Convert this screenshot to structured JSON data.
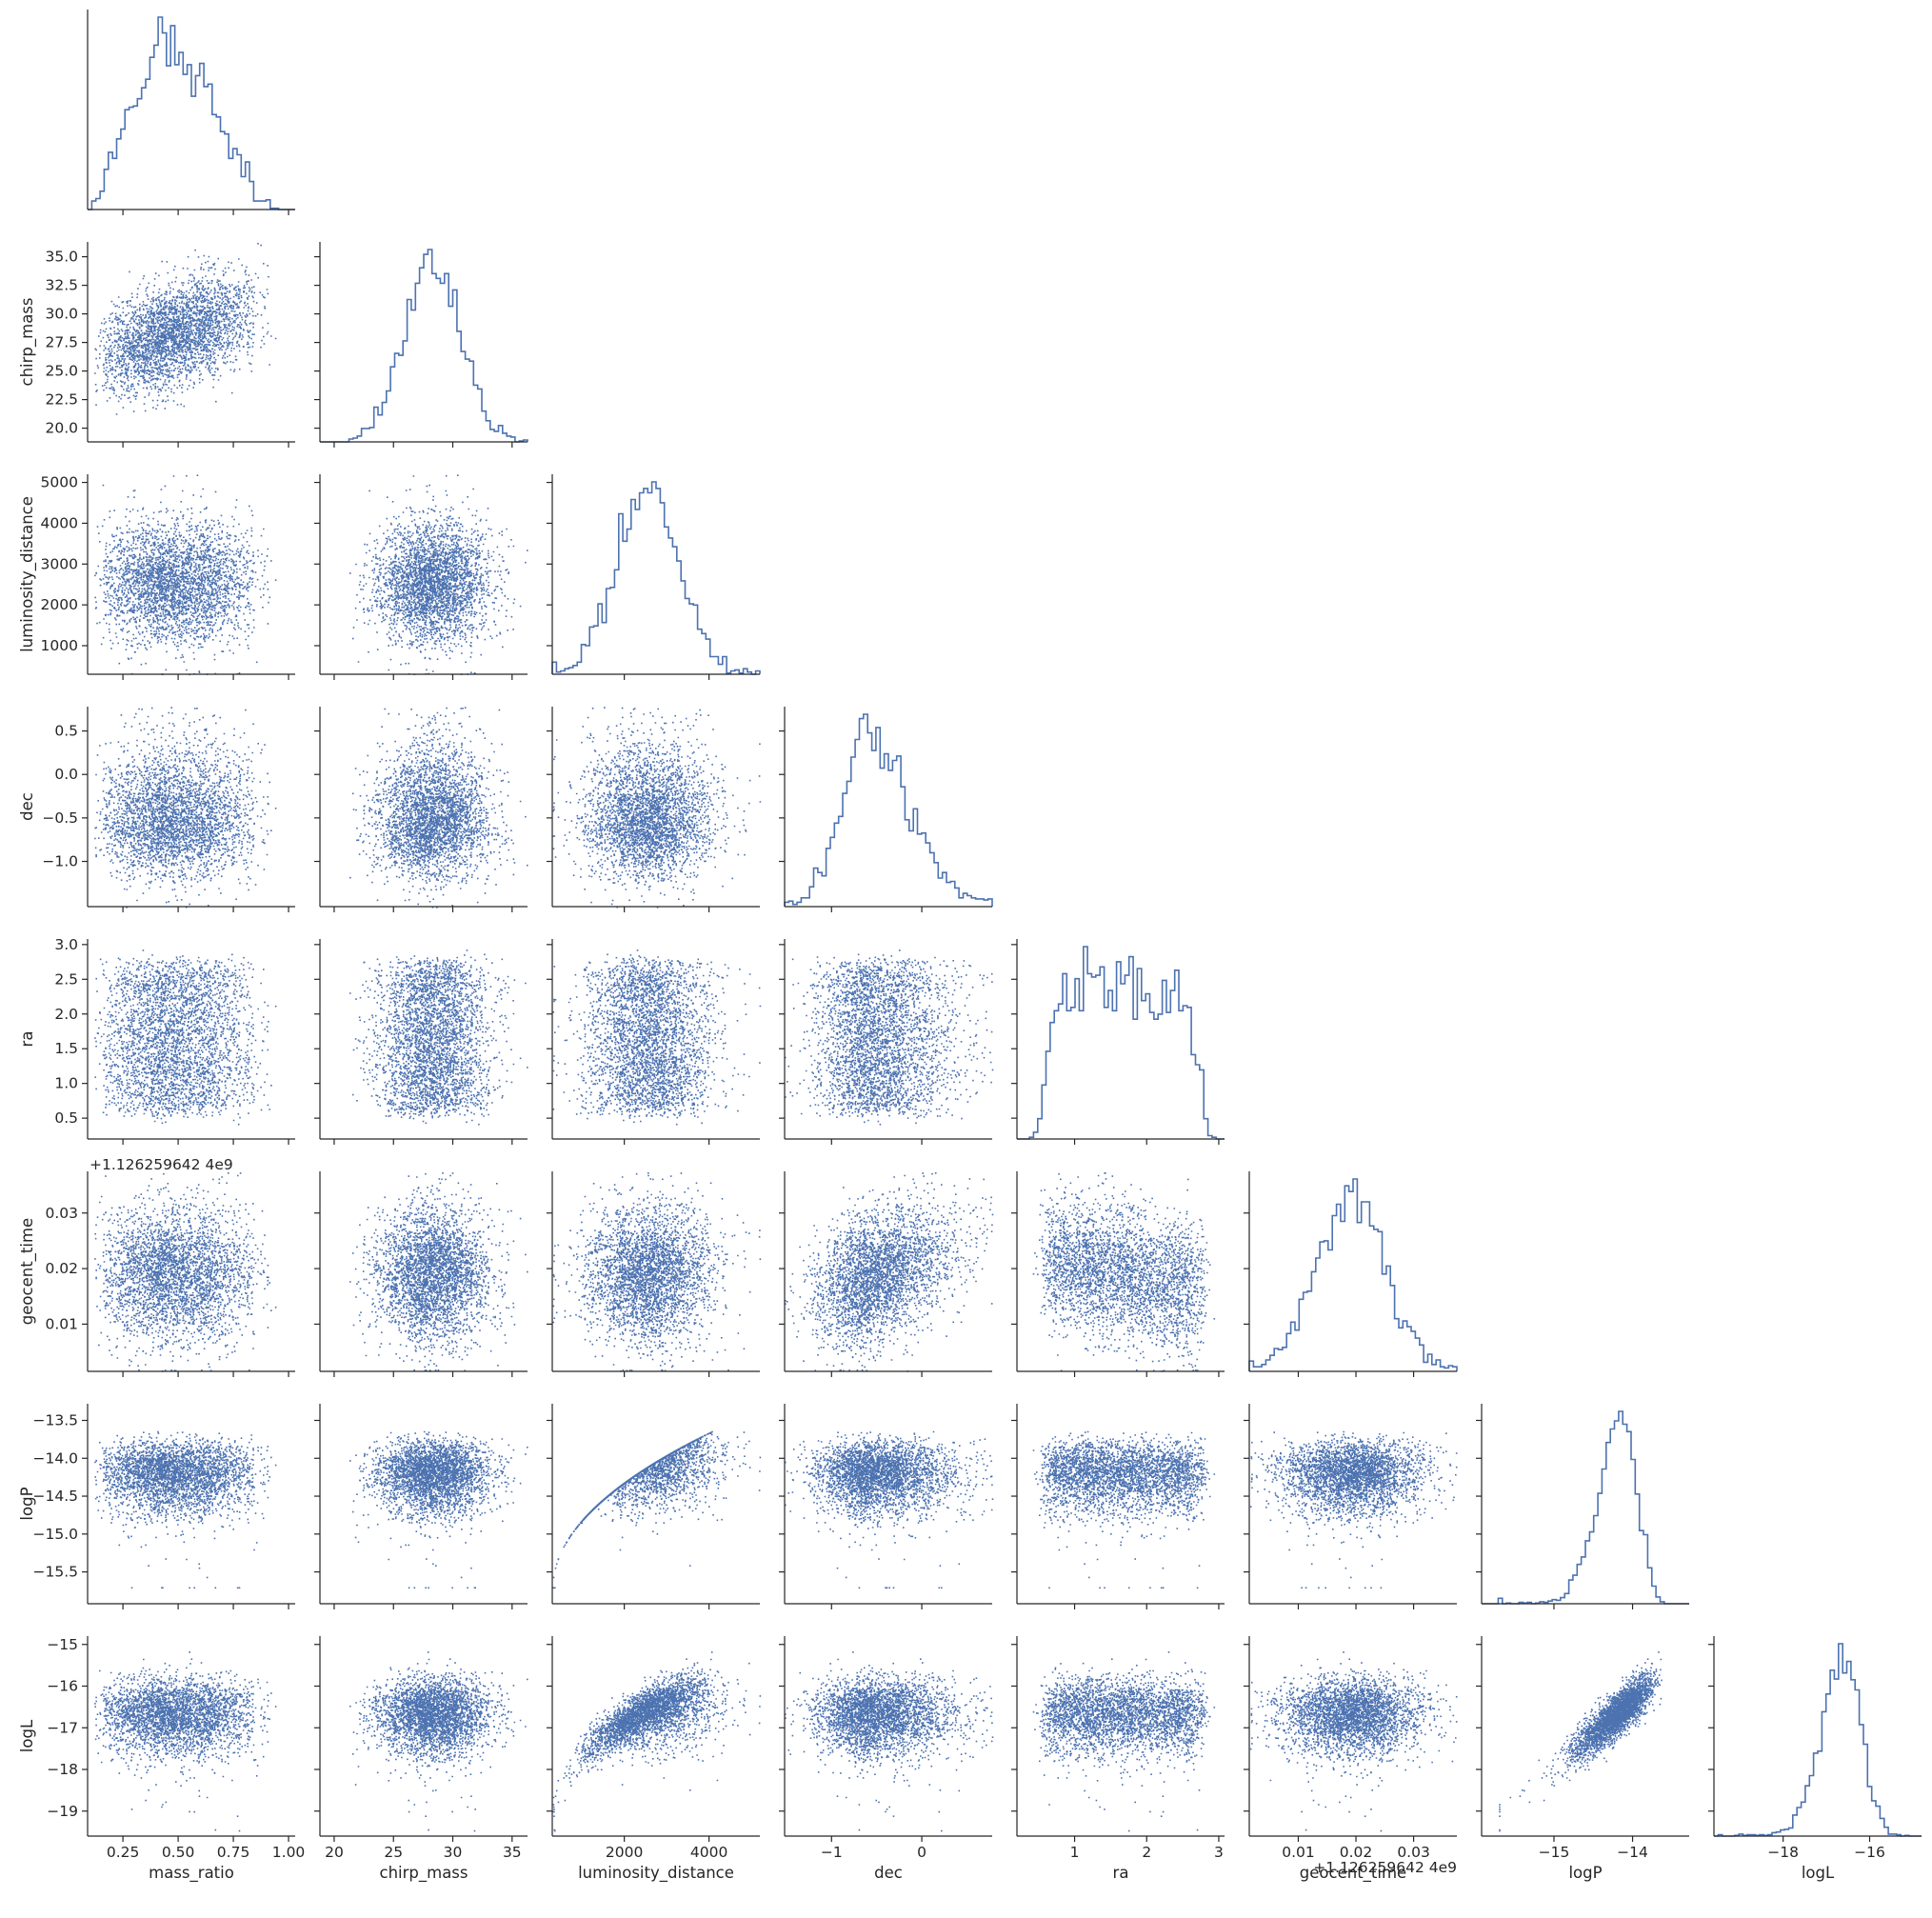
{
  "colors": {
    "marker": "#4c72b0",
    "axis": "#262626",
    "background": "#ffffff"
  },
  "chart_data": {
    "type": "pairplot",
    "layout": "lower-triangle",
    "diagonal": "histogram (step)",
    "off_diagonal": "scatter",
    "variables": [
      {
        "name": "mass_ratio",
        "label": "mass_ratio",
        "range": [
          0.09,
          1.03
        ],
        "ticks": [
          0.25,
          0.5,
          0.75,
          1.0
        ],
        "tick_labels": [
          "0.25",
          "0.50",
          "0.75",
          "1.00"
        ],
        "dist": {
          "type": "beta",
          "a": 2.7,
          "b": 3.6,
          "min": 0.1,
          "max": 1.0
        }
      },
      {
        "name": "chirp_mass",
        "label": "chirp_mass",
        "range": [
          18.8,
          36.3
        ],
        "ticks": [
          20,
          25,
          30,
          35
        ],
        "tick_labels": [
          "20",
          "25",
          "30",
          "35"
        ],
        "ytick_values": [
          20.0,
          22.5,
          25.0,
          27.5,
          30.0,
          32.5,
          35.0
        ],
        "ytick_labels": [
          "20.0",
          "22.5",
          "25.0",
          "27.5",
          "30.0",
          "32.5",
          "35.0"
        ],
        "dist": {
          "type": "normal",
          "mean": 28.1,
          "sd": 2.1
        }
      },
      {
        "name": "luminosity_distance",
        "label": "luminosity_distance",
        "range": [
          300,
          5200
        ],
        "ticks": [
          2000,
          4000
        ],
        "tick_labels": [
          "2000",
          "4000"
        ],
        "ytick_values": [
          1000,
          2000,
          3000,
          4000,
          5000
        ],
        "ytick_labels": [
          "1000",
          "2000",
          "3000",
          "4000",
          "5000"
        ],
        "dist": {
          "type": "normal",
          "mean": 2550,
          "sd": 760
        }
      },
      {
        "name": "dec",
        "label": "dec",
        "range": [
          -1.52,
          0.78
        ],
        "ticks": [
          -1,
          0
        ],
        "tick_labels": [
          "−1",
          "0"
        ],
        "ytick_values": [
          -1.0,
          -0.5,
          0.0,
          0.5
        ],
        "ytick_labels": [
          "−1.0",
          "−0.5",
          "0.0",
          "0.5"
        ],
        "dist": {
          "type": "skewed",
          "mode": -0.62,
          "sd_left": 0.28,
          "sd_right": 0.48
        }
      },
      {
        "name": "ra",
        "label": "ra",
        "range": [
          0.2,
          3.08
        ],
        "ticks": [
          1,
          2,
          3
        ],
        "tick_labels": [
          "1",
          "2",
          "3"
        ],
        "ytick_values": [
          0.5,
          1.0,
          1.5,
          2.0,
          2.5,
          3.0
        ],
        "ytick_labels": [
          "0.5",
          "1.0",
          "1.5",
          "2.0",
          "2.5",
          "3.0"
        ],
        "dist": {
          "type": "plateau",
          "lo": 0.62,
          "hi": 2.72,
          "edge_sd": 0.12
        }
      },
      {
        "name": "geocent_time",
        "label": "geocent_time",
        "range": [
          0.0015,
          0.0375
        ],
        "ticks": [
          0.01,
          0.02,
          0.03
        ],
        "tick_labels": [
          "0.01",
          "0.02",
          "0.03"
        ],
        "ytick_values": [
          0.01,
          0.02,
          0.03
        ],
        "ytick_labels": [
          "0.01",
          "0.02",
          "0.03"
        ],
        "offset_y_text": "+1.126259642 4e9",
        "offset_x_text": "+1.126259642 4e9",
        "dist": {
          "type": "normal",
          "mean": 0.0188,
          "sd": 0.0055
        }
      },
      {
        "name": "logP",
        "label": "logP",
        "range": [
          -15.92,
          -13.28
        ],
        "ticks": [
          -15,
          -14
        ],
        "tick_labels": [
          "−15",
          "−14"
        ],
        "ytick_values": [
          -15.5,
          -15.0,
          -14.5,
          -14.0,
          -13.5
        ],
        "ytick_labels": [
          "−15.5",
          "−15.0",
          "−14.5",
          "−14.0",
          "−13.5"
        ],
        "dist": {
          "type": "leftskew",
          "mode": -13.8,
          "sd_left": 0.38,
          "sd_right": 0.12
        }
      },
      {
        "name": "logL",
        "label": "logL",
        "range": [
          -19.6,
          -14.8
        ],
        "ticks": [
          -18,
          -16
        ],
        "tick_labels": [
          "−18",
          "−16"
        ],
        "ytick_values": [
          -19,
          -18,
          -17,
          -16,
          -15
        ],
        "ytick_labels": [
          "−19",
          "−18",
          "−17",
          "−16",
          "−15"
        ],
        "dist": {
          "type": "leftskew",
          "mode": -16.05,
          "sd_left": 0.6,
          "sd_right": 0.3
        }
      }
    ],
    "samples_drawn_per_scatter": 3200,
    "histogram_bins": 50
  }
}
